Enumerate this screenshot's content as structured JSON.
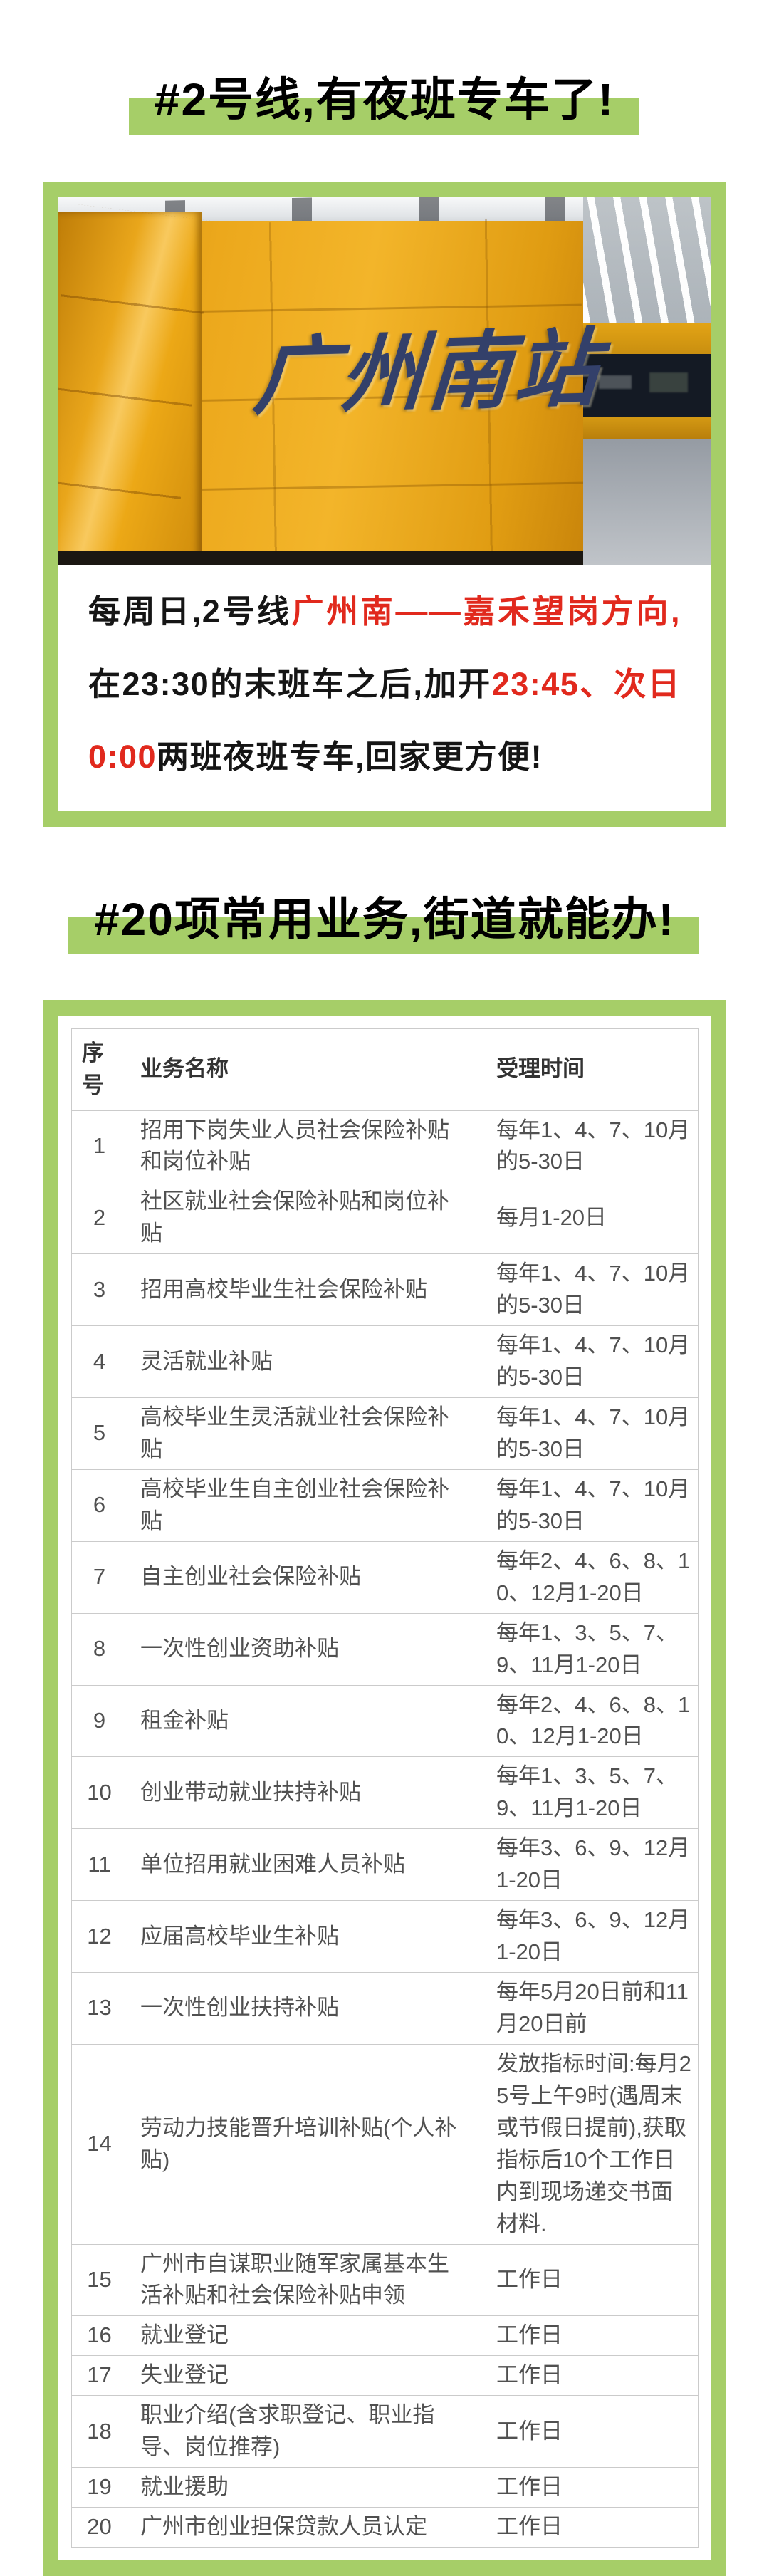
{
  "colors": {
    "green": "#a6ce68",
    "red": "#e1291d",
    "table_border": "#cbcbcb",
    "table_text": "#505050",
    "table_header": "#333333",
    "sign_blue": "#33406a"
  },
  "section1": {
    "headline": "#2号线,有夜班专车了!",
    "photo_sign": "广州南站",
    "paragraph": [
      {
        "text": "每周日,2号线",
        "red": false
      },
      {
        "text": "广州南——嘉禾望岗方向,",
        "red": true
      },
      {
        "text": "在23:30的末班车之后,加开",
        "red": false
      },
      {
        "text": "23:45、次日0:00",
        "red": true
      },
      {
        "text": "两班夜班专车,回家更方便!",
        "red": false
      }
    ]
  },
  "section2": {
    "headline": "#20项常用业务,街道就能办!",
    "table": {
      "headers": [
        "序号",
        "业务名称",
        "受理时间"
      ],
      "rows": [
        {
          "no": "1",
          "name": "招用下岗失业人员社会保险补贴和岗位补贴",
          "time": "每年1、4、7、10月的5-30日"
        },
        {
          "no": "2",
          "name": "社区就业社会保险补贴和岗位补贴",
          "time": "每月1-20日"
        },
        {
          "no": "3",
          "name": "招用高校毕业生社会保险补贴",
          "time": "每年1、4、7、10月的5-30日"
        },
        {
          "no": "4",
          "name": "灵活就业补贴",
          "time": "每年1、4、7、10月的5-30日"
        },
        {
          "no": "5",
          "name": "高校毕业生灵活就业社会保险补贴",
          "time": "每年1、4、7、10月的5-30日"
        },
        {
          "no": "6",
          "name": "高校毕业生自主创业社会保险补贴",
          "time": "每年1、4、7、10月的5-30日"
        },
        {
          "no": "7",
          "name": "自主创业社会保险补贴",
          "time": "每年2、4、6、8、10、12月1-20日"
        },
        {
          "no": "8",
          "name": "一次性创业资助补贴",
          "time": "每年1、3、5、7、9、11月1-20日"
        },
        {
          "no": "9",
          "name": "租金补贴",
          "time": "每年2、4、6、8、10、12月1-20日"
        },
        {
          "no": "10",
          "name": "创业带动就业扶持补贴",
          "time": "每年1、3、5、7、9、11月1-20日"
        },
        {
          "no": "11",
          "name": "单位招用就业困难人员补贴",
          "time": "每年3、6、9、12月1-20日"
        },
        {
          "no": "12",
          "name": "应届高校毕业生补贴",
          "time": "每年3、6、9、12月1-20日"
        },
        {
          "no": "13",
          "name": "一次性创业扶持补贴",
          "time": "每年5月20日前和11月20日前"
        },
        {
          "no": "14",
          "name": "劳动力技能晋升培训补贴(个人补贴)",
          "time": "发放指标时间:每月25号上午9时(遇周末或节假日提前),获取指标后10个工作日内到现场递交书面材料."
        },
        {
          "no": "15",
          "name": "广州市自谋职业随军家属基本生活补贴和社会保险补贴申领",
          "time": "工作日"
        },
        {
          "no": "16",
          "name": "就业登记",
          "time": "工作日"
        },
        {
          "no": "17",
          "name": "失业登记",
          "time": "工作日"
        },
        {
          "no": "18",
          "name": "职业介绍(含求职登记、职业指导、岗位推荐)",
          "time": "工作日"
        },
        {
          "no": "19",
          "name": "就业援助",
          "time": "工作日"
        },
        {
          "no": "20",
          "name": "广州市创业担保贷款人员认定",
          "time": "工作日"
        }
      ]
    }
  }
}
